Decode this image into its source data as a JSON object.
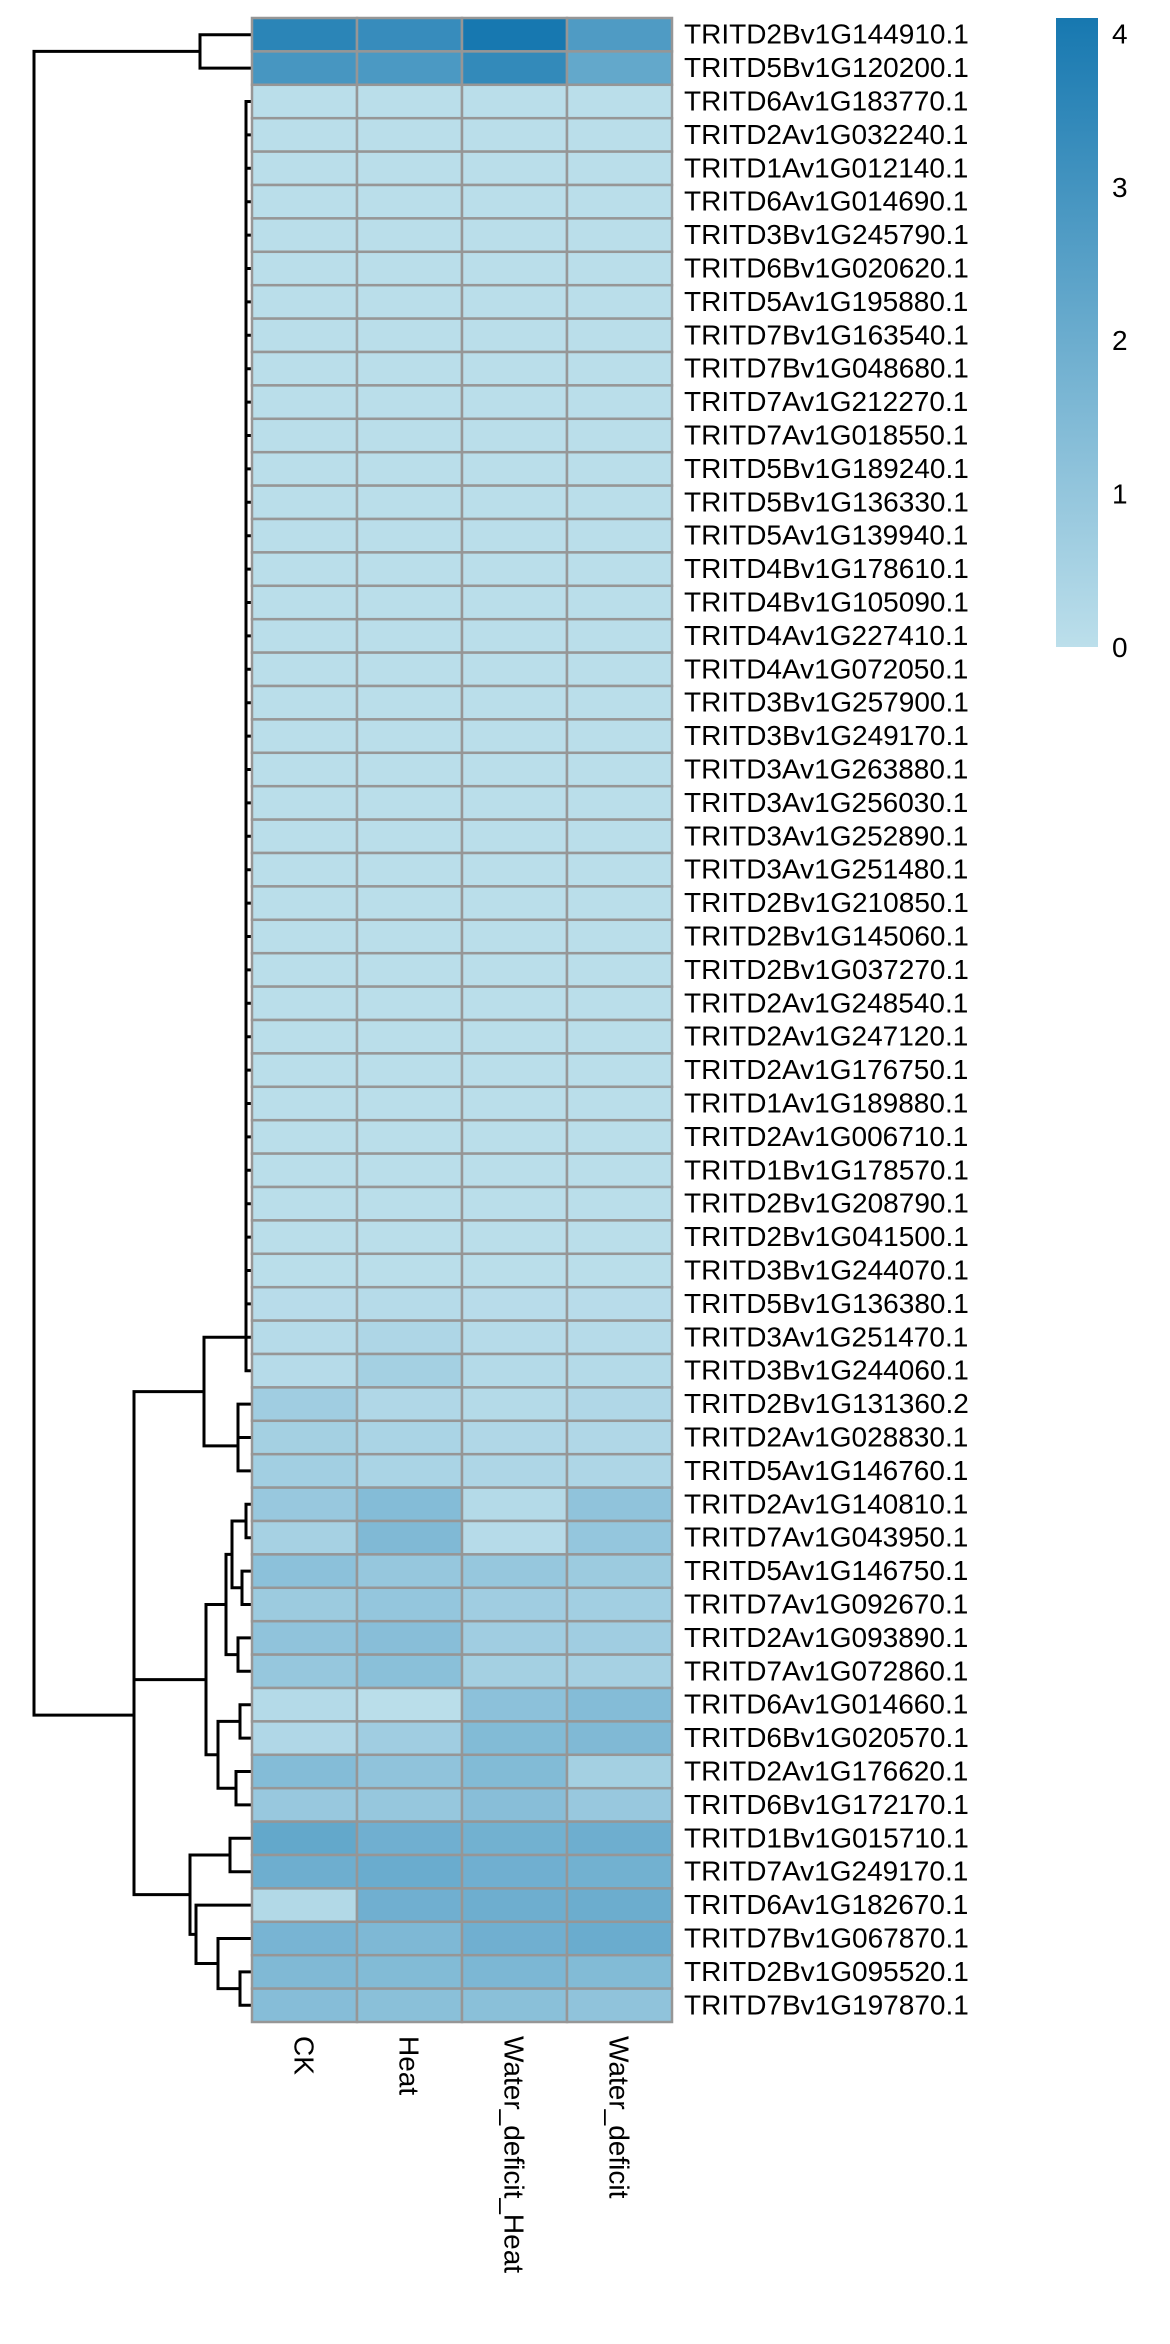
{
  "chart_data": {
    "type": "heatmap",
    "title": "",
    "columns": [
      "CK",
      "Heat",
      "Water_deficit_Heat",
      "Water_deficit"
    ],
    "rows": [
      "TRITD2Bv1G144910.1",
      "TRITD5Bv1G120200.1",
      "TRITD6Av1G183770.1",
      "TRITD2Av1G032240.1",
      "TRITD1Av1G012140.1",
      "TRITD6Av1G014690.1",
      "TRITD3Bv1G245790.1",
      "TRITD6Bv1G020620.1",
      "TRITD5Av1G195880.1",
      "TRITD7Bv1G163540.1",
      "TRITD7Bv1G048680.1",
      "TRITD7Av1G212270.1",
      "TRITD7Av1G018550.1",
      "TRITD5Bv1G189240.1",
      "TRITD5Bv1G136330.1",
      "TRITD5Av1G139940.1",
      "TRITD4Bv1G178610.1",
      "TRITD4Bv1G105090.1",
      "TRITD4Av1G227410.1",
      "TRITD4Av1G072050.1",
      "TRITD3Bv1G257900.1",
      "TRITD3Bv1G249170.1",
      "TRITD3Av1G263880.1",
      "TRITD3Av1G256030.1",
      "TRITD3Av1G252890.1",
      "TRITD3Av1G251480.1",
      "TRITD2Bv1G210850.1",
      "TRITD2Bv1G145060.1",
      "TRITD2Bv1G037270.1",
      "TRITD2Av1G248540.1",
      "TRITD2Av1G247120.1",
      "TRITD2Av1G176750.1",
      "TRITD1Av1G189880.1",
      "TRITD2Av1G006710.1",
      "TRITD1Bv1G178570.1",
      "TRITD2Bv1G208790.1",
      "TRITD2Bv1G041500.1",
      "TRITD3Bv1G244070.1",
      "TRITD5Bv1G136380.1",
      "TRITD3Av1G251470.1",
      "TRITD3Bv1G244060.1",
      "TRITD2Bv1G131360.2",
      "TRITD2Av1G028830.1",
      "TRITD5Av1G146760.1",
      "TRITD2Av1G140810.1",
      "TRITD7Av1G043950.1",
      "TRITD5Av1G146750.1",
      "TRITD7Av1G092670.1",
      "TRITD2Av1G093890.1",
      "TRITD7Av1G072860.1",
      "TRITD6Av1G014660.1",
      "TRITD6Bv1G020570.1",
      "TRITD2Av1G176620.1",
      "TRITD6Bv1G172170.1",
      "TRITD1Bv1G015710.1",
      "TRITD7Av1G249170.1",
      "TRITD6Av1G182670.1",
      "TRITD7Bv1G067870.1",
      "TRITD2Bv1G095520.1",
      "TRITD7Bv1G197870.1"
    ],
    "values": [
      [
        3.6,
        3.3,
        4.1,
        2.7
      ],
      [
        2.9,
        2.8,
        3.4,
        2.2
      ],
      [
        0.05,
        0.05,
        0.05,
        0.05
      ],
      [
        0.05,
        0.05,
        0.05,
        0.05
      ],
      [
        0.05,
        0.05,
        0.05,
        0.05
      ],
      [
        0.05,
        0.05,
        0.05,
        0.05
      ],
      [
        0.05,
        0.05,
        0.05,
        0.05
      ],
      [
        0.05,
        0.05,
        0.05,
        0.05
      ],
      [
        0.05,
        0.05,
        0.05,
        0.05
      ],
      [
        0.05,
        0.05,
        0.05,
        0.05
      ],
      [
        0.05,
        0.05,
        0.05,
        0.05
      ],
      [
        0.05,
        0.05,
        0.05,
        0.05
      ],
      [
        0.05,
        0.05,
        0.05,
        0.05
      ],
      [
        0.05,
        0.05,
        0.05,
        0.05
      ],
      [
        0.05,
        0.05,
        0.05,
        0.05
      ],
      [
        0.05,
        0.05,
        0.05,
        0.05
      ],
      [
        0.05,
        0.05,
        0.05,
        0.05
      ],
      [
        0.05,
        0.05,
        0.05,
        0.05
      ],
      [
        0.05,
        0.05,
        0.05,
        0.05
      ],
      [
        0.05,
        0.05,
        0.05,
        0.05
      ],
      [
        0.05,
        0.05,
        0.05,
        0.05
      ],
      [
        0.05,
        0.05,
        0.05,
        0.05
      ],
      [
        0.05,
        0.05,
        0.05,
        0.05
      ],
      [
        0.05,
        0.05,
        0.05,
        0.05
      ],
      [
        0.05,
        0.05,
        0.05,
        0.05
      ],
      [
        0.05,
        0.05,
        0.05,
        0.05
      ],
      [
        0.05,
        0.05,
        0.05,
        0.05
      ],
      [
        0.05,
        0.05,
        0.05,
        0.05
      ],
      [
        0.05,
        0.05,
        0.05,
        0.05
      ],
      [
        0.05,
        0.05,
        0.05,
        0.05
      ],
      [
        0.05,
        0.05,
        0.05,
        0.05
      ],
      [
        0.05,
        0.05,
        0.05,
        0.05
      ],
      [
        0.05,
        0.05,
        0.05,
        0.05
      ],
      [
        0.05,
        0.05,
        0.05,
        0.05
      ],
      [
        0.05,
        0.05,
        0.05,
        0.05
      ],
      [
        0.05,
        0.05,
        0.05,
        0.05
      ],
      [
        0.05,
        0.05,
        0.05,
        0.05
      ],
      [
        0.05,
        0.05,
        0.05,
        0.05
      ],
      [
        0.1,
        0.15,
        0.1,
        0.1
      ],
      [
        0.15,
        0.35,
        0.15,
        0.15
      ],
      [
        0.15,
        0.6,
        0.2,
        0.2
      ],
      [
        0.7,
        0.3,
        0.2,
        0.3
      ],
      [
        0.6,
        0.45,
        0.3,
        0.3
      ],
      [
        0.65,
        0.45,
        0.35,
        0.35
      ],
      [
        0.9,
        1.4,
        0.2,
        1.1
      ],
      [
        0.55,
        1.5,
        0.15,
        1.0
      ],
      [
        1.2,
        0.95,
        0.95,
        0.8
      ],
      [
        0.8,
        1.0,
        0.7,
        0.65
      ],
      [
        1.1,
        1.3,
        0.7,
        0.7
      ],
      [
        0.95,
        1.25,
        0.6,
        0.55
      ],
      [
        0.2,
        0.05,
        1.2,
        1.4
      ],
      [
        0.3,
        0.7,
        1.45,
        1.5
      ],
      [
        1.4,
        1.1,
        1.45,
        0.6
      ],
      [
        0.9,
        0.95,
        1.3,
        0.9
      ],
      [
        2.2,
        1.9,
        1.85,
        1.95
      ],
      [
        1.95,
        2.05,
        1.9,
        1.85
      ],
      [
        0.25,
        1.9,
        1.95,
        2.0
      ],
      [
        1.7,
        1.55,
        1.9,
        2.05
      ],
      [
        1.5,
        1.45,
        1.6,
        1.45
      ],
      [
        1.35,
        1.25,
        1.25,
        1.1
      ]
    ],
    "color_scale": {
      "min": 0,
      "max": 4.1,
      "low_color": "#bcdfeb",
      "high_color": "#1778b0"
    },
    "legend": {
      "position": "top-right",
      "ticks": [
        "0",
        "1",
        "2",
        "3",
        "4"
      ]
    },
    "grid": true,
    "cell_border_color": "#969696",
    "dendrogram_row": true
  }
}
